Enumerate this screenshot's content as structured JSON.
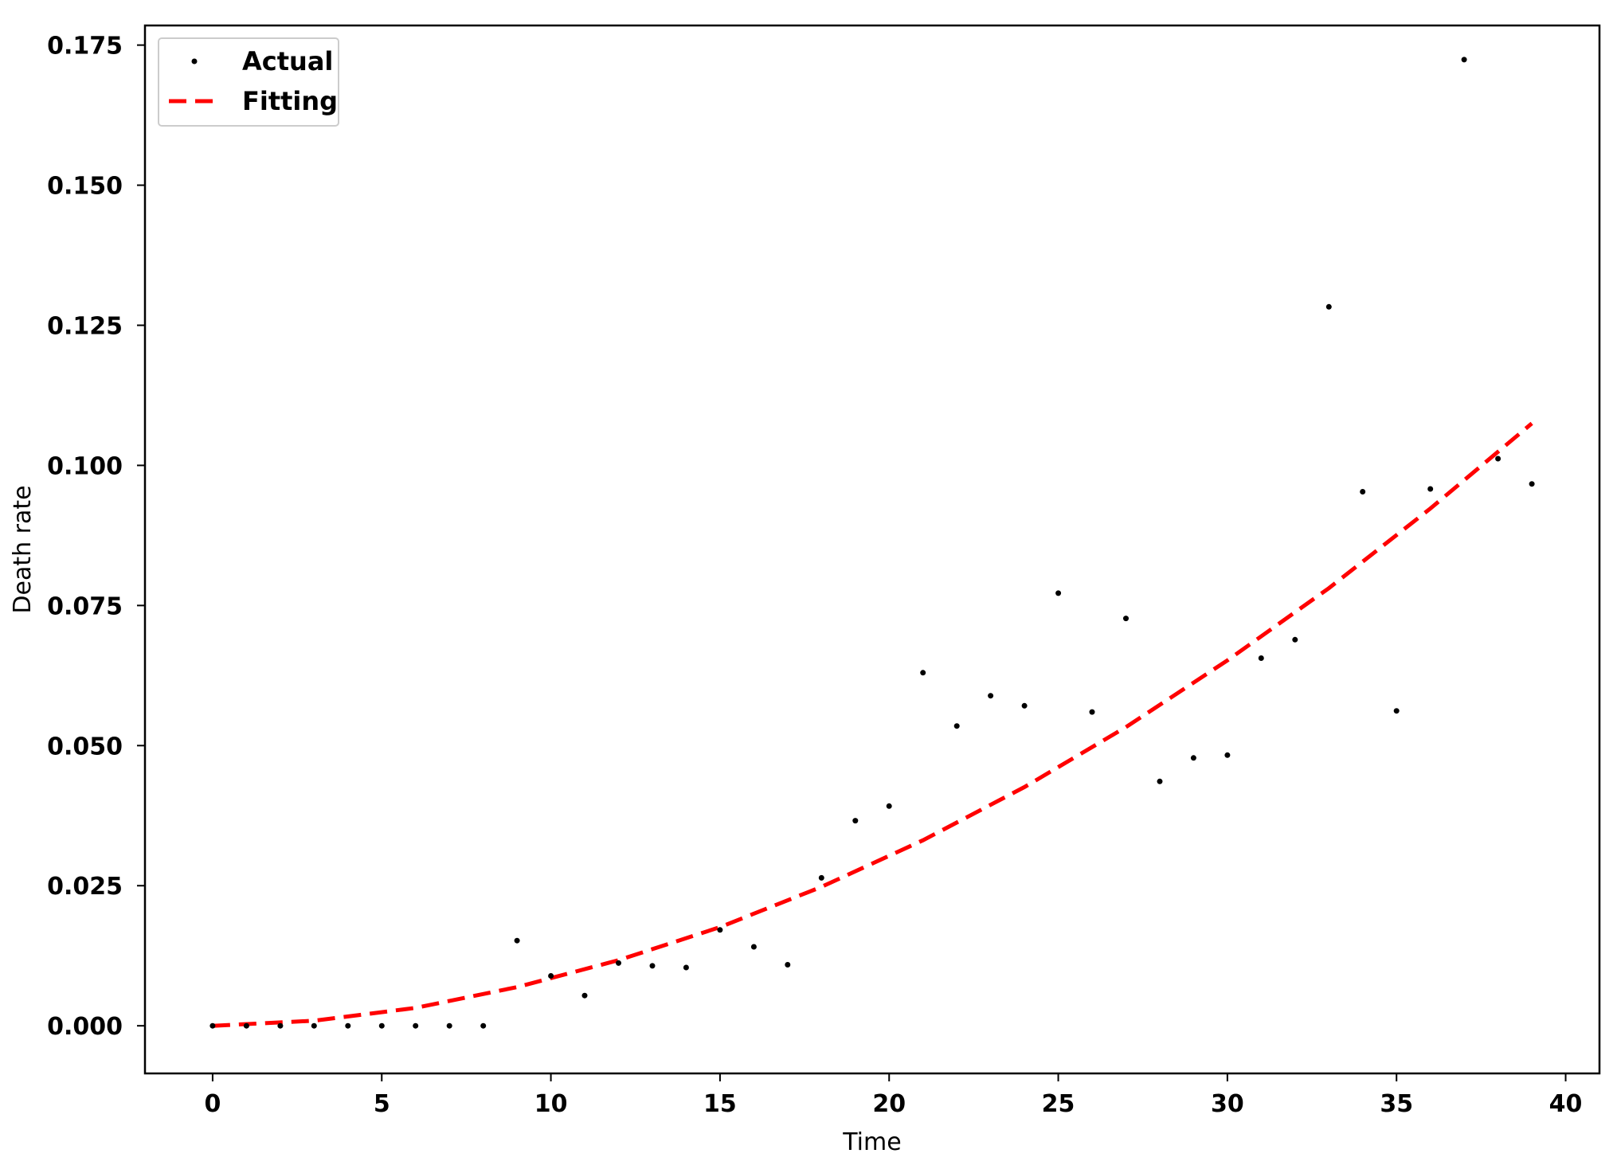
{
  "chart_data": {
    "type": "scatter",
    "xlabel": "Time",
    "ylabel": "Death rate",
    "xlim": [
      -2,
      41
    ],
    "ylim": [
      -0.0085,
      0.1785
    ],
    "xticks": [
      0,
      5,
      10,
      15,
      20,
      25,
      30,
      35,
      40
    ],
    "xtick_labels": [
      "0",
      "5",
      "10",
      "15",
      "20",
      "25",
      "30",
      "35",
      "40"
    ],
    "yticks": [
      0.0,
      0.025,
      0.05,
      0.075,
      0.1,
      0.125,
      0.15,
      0.175
    ],
    "ytick_labels": [
      "0.000",
      "0.025",
      "0.050",
      "0.075",
      "0.100",
      "0.125",
      "0.150",
      "0.175"
    ],
    "grid": false,
    "legend_position": "upper-left",
    "series": [
      {
        "name": "Actual",
        "style": "points",
        "color": "#000000",
        "x": [
          0,
          1,
          2,
          3,
          4,
          5,
          6,
          7,
          8,
          9,
          10,
          11,
          12,
          13,
          14,
          15,
          16,
          17,
          18,
          19,
          20,
          21,
          22,
          23,
          24,
          25,
          26,
          27,
          28,
          29,
          30,
          31,
          32,
          33,
          34,
          35,
          36,
          37,
          38,
          39
        ],
        "y": [
          0.0,
          0.0,
          0.0,
          0.0,
          0.0,
          0.0,
          0.0,
          0.0,
          0.0,
          0.0152,
          0.0089,
          0.0054,
          0.0112,
          0.0107,
          0.0104,
          0.0171,
          0.0141,
          0.0109,
          0.0264,
          0.0366,
          0.0392,
          0.063,
          0.0535,
          0.0589,
          0.0571,
          0.0772,
          0.056,
          0.0727,
          0.0436,
          0.0478,
          0.0483,
          0.0656,
          0.0689,
          0.1283,
          0.0953,
          0.0562,
          0.0958,
          0.1724,
          0.1012,
          0.0967
        ]
      },
      {
        "name": "Fitting",
        "style": "dashed-line",
        "color": "#ff0000",
        "x": [
          0,
          3,
          6,
          9,
          12,
          15,
          18,
          21,
          24,
          27,
          30,
          33,
          36,
          39
        ],
        "y": [
          0.0,
          0.0009,
          0.0032,
          0.0069,
          0.0117,
          0.0176,
          0.0248,
          0.0331,
          0.0426,
          0.0533,
          0.0652,
          0.0781,
          0.0923,
          0.1075
        ]
      }
    ]
  }
}
